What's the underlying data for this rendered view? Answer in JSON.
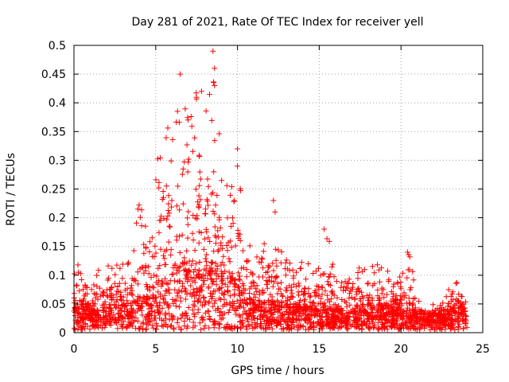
{
  "chart_data": {
    "type": "scatter",
    "title": "Day 281 of 2021, Rate Of TEC Index for receiver yell",
    "xlabel": "GPS time / hours",
    "ylabel": "ROTI / TECUs",
    "xlim": [
      0,
      25
    ],
    "ylim": [
      0,
      0.5
    ],
    "x_ticks": [
      "0",
      "5",
      "10",
      "15",
      "20",
      "25"
    ],
    "y_ticks": [
      "0",
      "0.05",
      "0.1",
      "0.15",
      "0.2",
      "0.25",
      "0.3",
      "0.35",
      "0.4",
      "0.45",
      "0.5"
    ],
    "grid": true,
    "marker": "+",
    "color": "#ff0000",
    "profile": [
      [
        0.0,
        0.05,
        0.15
      ],
      [
        0.5,
        0.035,
        0.1
      ],
      [
        1.0,
        0.03,
        0.07
      ],
      [
        1.5,
        0.03,
        0.11
      ],
      [
        2.0,
        0.035,
        0.12
      ],
      [
        2.5,
        0.04,
        0.13
      ],
      [
        3.0,
        0.035,
        0.13
      ],
      [
        3.5,
        0.04,
        0.12
      ],
      [
        4.0,
        0.05,
        0.26
      ],
      [
        4.5,
        0.05,
        0.17
      ],
      [
        5.0,
        0.07,
        0.3
      ],
      [
        5.5,
        0.08,
        0.34
      ],
      [
        6.0,
        0.09,
        0.38
      ],
      [
        6.5,
        0.1,
        0.41
      ],
      [
        7.0,
        0.1,
        0.39
      ],
      [
        7.5,
        0.1,
        0.42
      ],
      [
        8.0,
        0.1,
        0.37
      ],
      [
        8.5,
        0.1,
        0.49
      ],
      [
        9.0,
        0.09,
        0.33
      ],
      [
        9.5,
        0.08,
        0.3
      ],
      [
        10.0,
        0.07,
        0.32
      ],
      [
        10.5,
        0.05,
        0.17
      ],
      [
        11.0,
        0.04,
        0.14
      ],
      [
        11.5,
        0.04,
        0.14
      ],
      [
        12.0,
        0.045,
        0.23
      ],
      [
        12.5,
        0.04,
        0.15
      ],
      [
        13.0,
        0.035,
        0.15
      ],
      [
        13.5,
        0.035,
        0.1
      ],
      [
        14.0,
        0.035,
        0.14
      ],
      [
        14.5,
        0.035,
        0.12
      ],
      [
        15.0,
        0.035,
        0.13
      ],
      [
        15.5,
        0.035,
        0.18
      ],
      [
        16.0,
        0.03,
        0.1
      ],
      [
        16.5,
        0.03,
        0.09
      ],
      [
        17.0,
        0.03,
        0.1
      ],
      [
        17.5,
        0.03,
        0.12
      ],
      [
        18.0,
        0.03,
        0.11
      ],
      [
        18.5,
        0.035,
        0.13
      ],
      [
        19.0,
        0.035,
        0.12
      ],
      [
        19.5,
        0.035,
        0.09
      ],
      [
        20.0,
        0.03,
        0.1
      ],
      [
        20.5,
        0.03,
        0.14
      ],
      [
        21.0,
        0.025,
        0.06
      ],
      [
        21.5,
        0.025,
        0.05
      ],
      [
        22.0,
        0.025,
        0.05
      ],
      [
        22.5,
        0.025,
        0.05
      ],
      [
        23.0,
        0.03,
        0.09
      ],
      [
        23.5,
        0.035,
        0.09
      ],
      [
        24.0,
        0.03,
        0.07
      ]
    ],
    "notable_points": [
      [
        8.5,
        0.49
      ],
      [
        8.6,
        0.46
      ],
      [
        6.5,
        0.45
      ],
      [
        8.6,
        0.43
      ],
      [
        7.8,
        0.42
      ],
      [
        10.0,
        0.32
      ],
      [
        12.2,
        0.23
      ],
      [
        12.3,
        0.21
      ],
      [
        15.3,
        0.18
      ],
      [
        20.4,
        0.14
      ]
    ]
  }
}
